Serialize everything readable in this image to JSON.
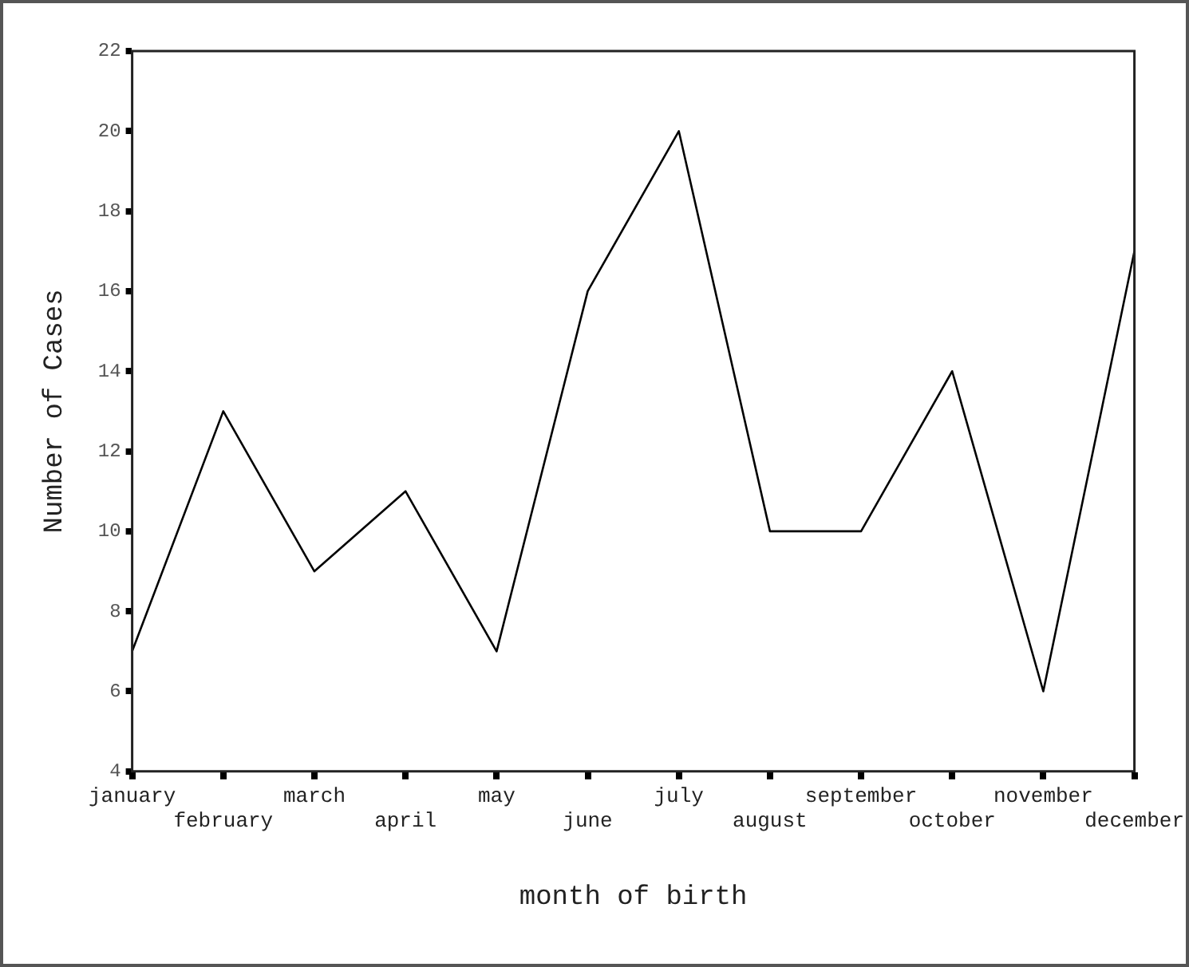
{
  "chart_data": {
    "type": "line",
    "xlabel": "month of birth",
    "ylabel": "Number of Cases",
    "categories": [
      "january",
      "february",
      "march",
      "april",
      "may",
      "june",
      "july",
      "august",
      "september",
      "october",
      "november",
      "december"
    ],
    "values": [
      7,
      13,
      9,
      11,
      7,
      16,
      20,
      10,
      10,
      14,
      6,
      17
    ],
    "color": "#000000",
    "ylim": [
      4,
      22
    ],
    "yticks": [
      4,
      6,
      8,
      10,
      12,
      14,
      16,
      18,
      20,
      22
    ],
    "grid": false,
    "marker": "none",
    "line_style": "solid"
  }
}
